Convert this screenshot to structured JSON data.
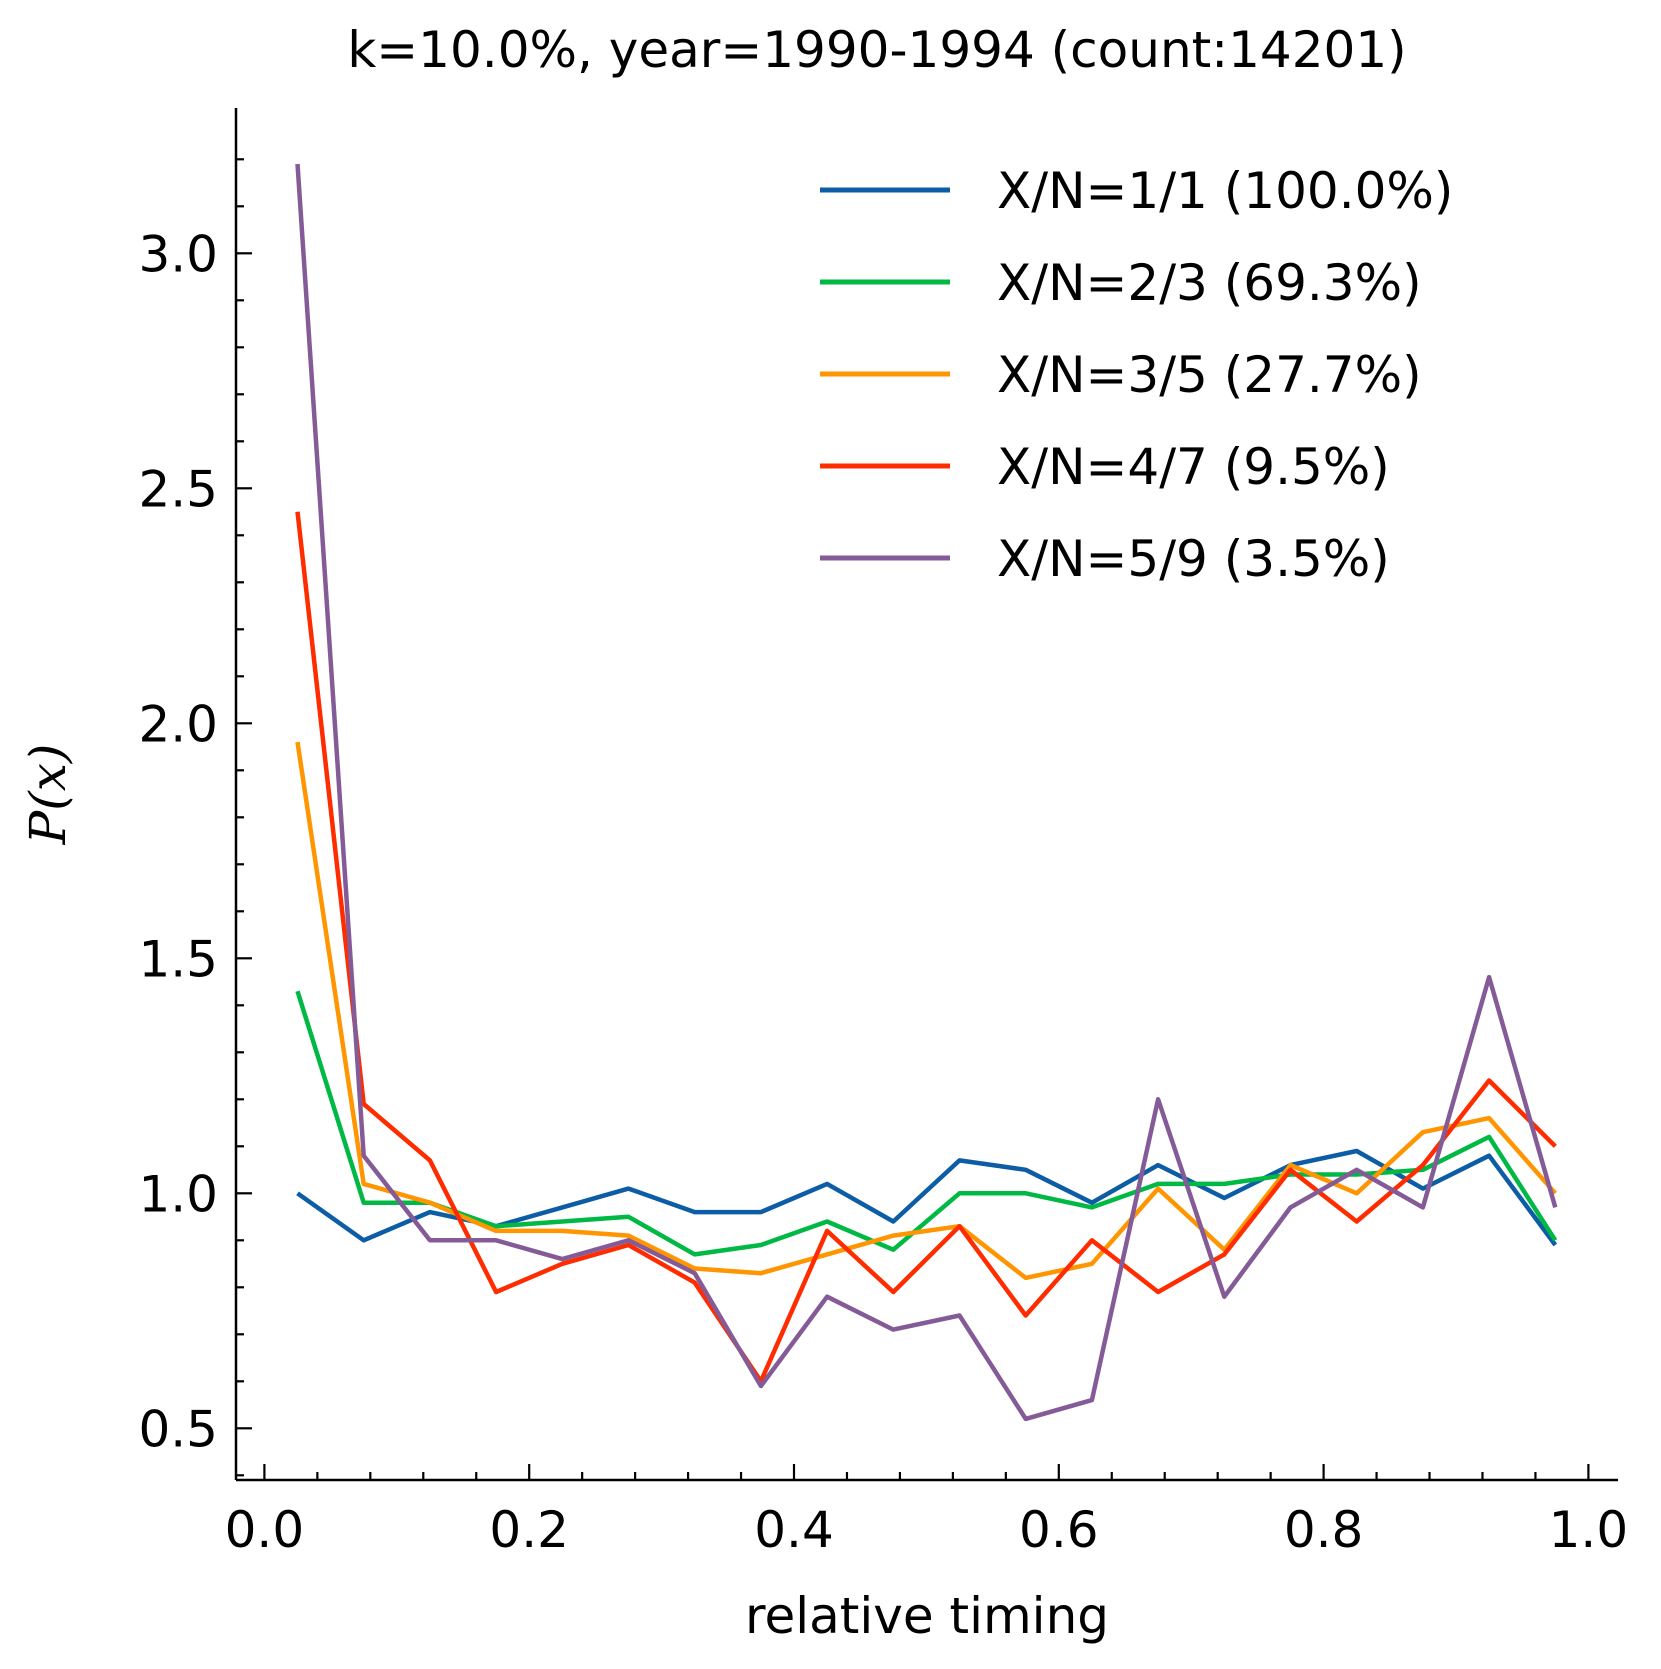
{
  "chart_data": {
    "type": "line",
    "title": "k=10.0%, year=1990-1994 (count:14201)",
    "xlabel": "relative timing",
    "ylabel": "P(x)",
    "xlim": [
      -0.02,
      1.02
    ],
    "ylim": [
      0.39,
      3.28
    ],
    "x_ticks": [
      0.0,
      0.2,
      0.4,
      0.6,
      0.8,
      1.0
    ],
    "x_tick_labels": [
      "0.0",
      "0.2",
      "0.4",
      "0.6",
      "0.8",
      "1.0"
    ],
    "y_ticks": [
      0.5,
      1.0,
      1.5,
      2.0,
      2.5,
      3.0
    ],
    "y_tick_labels": [
      "0.5",
      "1.0",
      "1.5",
      "2.0",
      "2.5",
      "3.0"
    ],
    "grid": false,
    "legend_position": "top-right",
    "x": [
      0.025,
      0.075,
      0.125,
      0.175,
      0.225,
      0.275,
      0.325,
      0.375,
      0.425,
      0.475,
      0.525,
      0.575,
      0.625,
      0.675,
      0.725,
      0.775,
      0.825,
      0.875,
      0.925,
      0.975
    ],
    "series": [
      {
        "name": "X/N=1/1 (100.0%)",
        "color": "#0C5DA5",
        "values": [
          1.0,
          0.9,
          0.96,
          0.93,
          0.97,
          1.01,
          0.96,
          0.96,
          1.02,
          0.94,
          1.07,
          1.05,
          0.98,
          1.06,
          0.99,
          1.06,
          1.09,
          1.01,
          1.08,
          0.89
        ]
      },
      {
        "name": "X/N=2/3 (69.3%)",
        "color": "#00B945",
        "values": [
          1.43,
          0.98,
          0.98,
          0.93,
          0.94,
          0.95,
          0.87,
          0.89,
          0.94,
          0.88,
          1.0,
          1.0,
          0.97,
          1.02,
          1.02,
          1.04,
          1.04,
          1.05,
          1.12,
          0.9
        ]
      },
      {
        "name": "X/N=3/5 (27.7%)",
        "color": "#FF9500",
        "values": [
          1.96,
          1.02,
          0.98,
          0.92,
          0.92,
          0.91,
          0.84,
          0.83,
          0.87,
          0.91,
          0.93,
          0.82,
          0.85,
          1.01,
          0.88,
          1.06,
          1.0,
          1.13,
          1.16,
          1.0
        ]
      },
      {
        "name": "X/N=4/7 (9.5%)",
        "color": "#FF2C00",
        "values": [
          2.45,
          1.19,
          1.07,
          0.79,
          0.85,
          0.89,
          0.81,
          0.6,
          0.92,
          0.79,
          0.93,
          0.74,
          0.9,
          0.79,
          0.87,
          1.05,
          0.94,
          1.06,
          1.24,
          1.1
        ]
      },
      {
        "name": "X/N=5/9 (3.5%)",
        "color": "#845B97",
        "values": [
          3.19,
          1.08,
          0.9,
          0.9,
          0.86,
          0.9,
          0.83,
          0.59,
          0.78,
          0.71,
          0.74,
          0.52,
          0.56,
          1.2,
          0.78,
          0.97,
          1.05,
          0.97,
          1.46,
          0.97
        ]
      }
    ]
  }
}
